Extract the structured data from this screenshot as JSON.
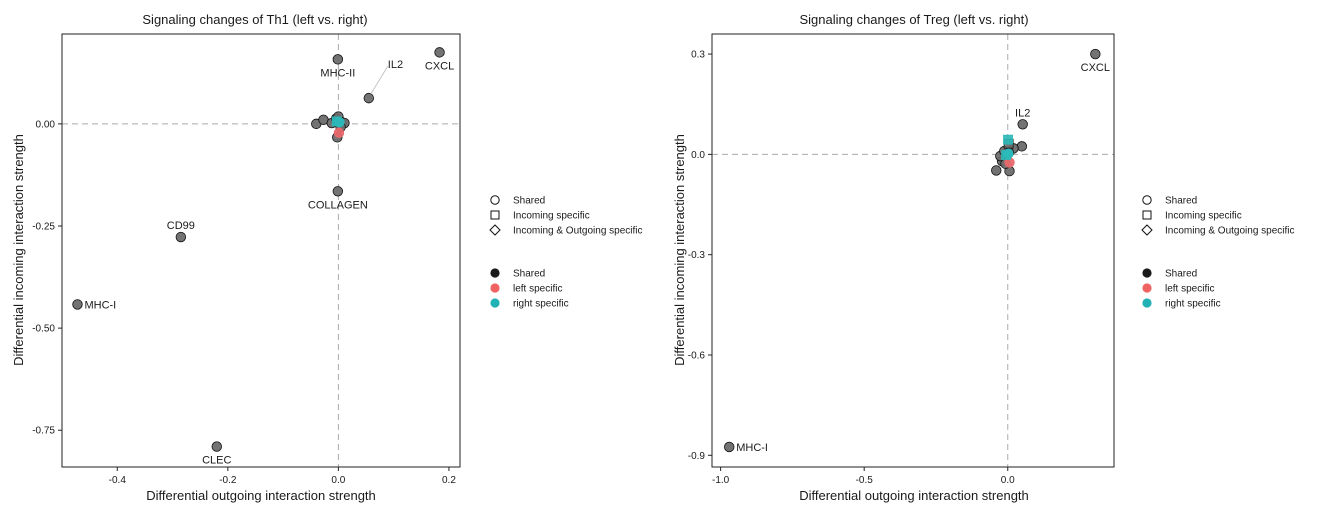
{
  "chart_data": [
    {
      "type": "scatter",
      "title": "Signaling changes of Th1 (left vs. right)",
      "xlabel": "Differential outgoing interaction strength",
      "ylabel": "Differential incoming interaction strength",
      "xlim": [
        -0.5,
        0.22
      ],
      "ylim": [
        -0.84,
        0.22
      ],
      "xticks": [
        -0.4,
        -0.2,
        0.0,
        0.2
      ],
      "xtick_labels": [
        "-0.4",
        "-0.2",
        "0.0",
        "0.2"
      ],
      "yticks": [
        0.0,
        -0.25,
        -0.5,
        -0.75
      ],
      "ytick_labels": [
        "0.00",
        "-0.25",
        "-0.50",
        "-0.75"
      ],
      "reference_lines": {
        "x": 0,
        "y": 0
      },
      "points": [
        {
          "label": "CXCL",
          "x": 0.183,
          "y": 0.175,
          "shape": "circle",
          "group": "Shared",
          "label_pos": "below"
        },
        {
          "label": "MHC-II",
          "x": -0.001,
          "y": 0.158,
          "shape": "circle",
          "group": "Shared",
          "label_pos": "below"
        },
        {
          "label": "IL2",
          "x": 0.055,
          "y": 0.063,
          "shape": "circle",
          "group": "Shared",
          "label_pos": "upper-right"
        },
        {
          "label": "COLLAGEN",
          "x": -0.001,
          "y": -0.165,
          "shape": "circle",
          "group": "Shared",
          "label_pos": "below"
        },
        {
          "label": "CD99",
          "x": -0.285,
          "y": -0.277,
          "shape": "circle",
          "group": "Shared",
          "label_pos": "above"
        },
        {
          "label": "MHC-I",
          "x": -0.472,
          "y": -0.442,
          "shape": "circle",
          "group": "Shared",
          "label_pos": "right"
        },
        {
          "label": "CLEC",
          "x": -0.22,
          "y": -0.79,
          "shape": "circle",
          "group": "Shared",
          "label_pos": "below"
        },
        {
          "label": "",
          "x": -0.04,
          "y": 0.0,
          "shape": "circle",
          "group": "Shared"
        },
        {
          "label": "",
          "x": -0.027,
          "y": 0.01,
          "shape": "circle",
          "group": "Shared"
        },
        {
          "label": "",
          "x": -0.012,
          "y": 0.002,
          "shape": "circle",
          "group": "Shared"
        },
        {
          "label": "",
          "x": -0.004,
          "y": 0.013,
          "shape": "circle",
          "group": "Shared"
        },
        {
          "label": "",
          "x": 0.0,
          "y": 0.018,
          "shape": "circle",
          "group": "Shared"
        },
        {
          "label": "",
          "x": 0.006,
          "y": 0.004,
          "shape": "circle",
          "group": "Shared"
        },
        {
          "label": "",
          "x": 0.011,
          "y": 0.002,
          "shape": "circle",
          "group": "Shared"
        },
        {
          "label": "",
          "x": 0.004,
          "y": -0.008,
          "shape": "circle",
          "group": "Shared"
        },
        {
          "label": "",
          "x": -0.002,
          "y": -0.033,
          "shape": "circle",
          "group": "Shared"
        },
        {
          "label": "",
          "x": 0.001,
          "y": -0.022,
          "shape": "circle",
          "group": "left specific"
        },
        {
          "label": "",
          "x": 0.002,
          "y": 0.004,
          "shape": "circle",
          "group": "right specific"
        },
        {
          "label": "",
          "x": -0.003,
          "y": 0.006,
          "shape": "square",
          "group": "right specific"
        }
      ]
    },
    {
      "type": "scatter",
      "title": "Signaling changes of Treg (left vs. right)",
      "xlabel": "Differential outgoing interaction strength",
      "ylabel": "Differential incoming interaction strength",
      "xlim": [
        -1.03,
        0.37
      ],
      "ylim": [
        -0.935,
        0.36
      ],
      "xticks": [
        -1.0,
        -0.5,
        0.0
      ],
      "xtick_labels": [
        "-1.0",
        "-0.5",
        "0.0"
      ],
      "yticks": [
        0.3,
        0.0,
        -0.3,
        -0.6,
        -0.9
      ],
      "ytick_labels": [
        "0.3",
        "0.0",
        "-0.3",
        "-0.6",
        "-0.9"
      ],
      "reference_lines": {
        "x": 0,
        "y": 0
      },
      "points": [
        {
          "label": "CXCL",
          "x": 0.305,
          "y": 0.3,
          "shape": "circle",
          "group": "Shared",
          "label_pos": "below"
        },
        {
          "label": "IL2",
          "x": 0.052,
          "y": 0.09,
          "shape": "circle",
          "group": "Shared",
          "label_pos": "above"
        },
        {
          "label": "MHC-I",
          "x": -0.97,
          "y": -0.875,
          "shape": "circle",
          "group": "Shared",
          "label_pos": "right"
        },
        {
          "label": "",
          "x": 0.049,
          "y": 0.024,
          "shape": "circle",
          "group": "Shared"
        },
        {
          "label": "",
          "x": 0.02,
          "y": 0.018,
          "shape": "circle",
          "group": "Shared"
        },
        {
          "label": "",
          "x": -0.04,
          "y": -0.048,
          "shape": "circle",
          "group": "Shared"
        },
        {
          "label": "",
          "x": -0.02,
          "y": -0.02,
          "shape": "circle",
          "group": "Shared"
        },
        {
          "label": "",
          "x": -0.026,
          "y": -0.005,
          "shape": "circle",
          "group": "Shared"
        },
        {
          "label": "",
          "x": -0.012,
          "y": 0.01,
          "shape": "circle",
          "group": "Shared"
        },
        {
          "label": "",
          "x": 0.006,
          "y": -0.05,
          "shape": "circle",
          "group": "Shared"
        },
        {
          "label": "",
          "x": -0.008,
          "y": -0.028,
          "shape": "circle",
          "group": "Shared"
        },
        {
          "label": "",
          "x": 0.004,
          "y": 0.005,
          "shape": "circle",
          "group": "Shared"
        },
        {
          "label": "",
          "x": 0.003,
          "y": 0.032,
          "shape": "square",
          "group": "Shared"
        },
        {
          "label": "",
          "x": 0.006,
          "y": -0.024,
          "shape": "circle",
          "group": "left specific"
        },
        {
          "label": "",
          "x": 0.001,
          "y": 0.044,
          "shape": "square",
          "group": "right specific"
        },
        {
          "label": "",
          "x": 0.002,
          "y": 0.002,
          "shape": "circle",
          "group": "right specific"
        },
        {
          "label": "",
          "x": -0.006,
          "y": -0.002,
          "shape": "square",
          "group": "right specific"
        }
      ]
    }
  ],
  "legend": {
    "shape_entries": [
      {
        "label": "Shared",
        "shape": "circle"
      },
      {
        "label": "Incoming specific",
        "shape": "square"
      },
      {
        "label": "Incoming & Outgoing specific",
        "shape": "diamond"
      }
    ],
    "color_entries": [
      {
        "label": "Shared",
        "color": "#1a1a1a"
      },
      {
        "label": "left specific",
        "color": "#F06262"
      },
      {
        "label": "right specific",
        "color": "#20B2B4"
      }
    ]
  },
  "colors": {
    "Shared": "#6b6b6b",
    "left specific": "#E8686A",
    "right specific": "#2CB9B9",
    "reference_line": "#aaaaaa",
    "axis": "#222222"
  }
}
